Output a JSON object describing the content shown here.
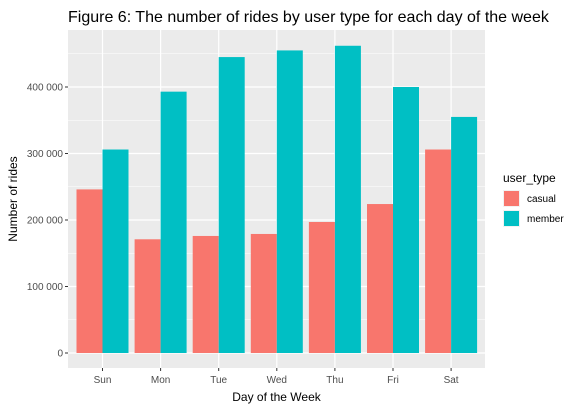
{
  "chart_data": {
    "type": "bar",
    "title": "Figure 6: The number of rides by user type for each day of the week",
    "xlabel": "Day of the Week",
    "ylabel": "Number of rides",
    "categories": [
      "Sun",
      "Mon",
      "Tue",
      "Wed",
      "Thu",
      "Fri",
      "Sat"
    ],
    "series": [
      {
        "name": "casual",
        "color": "#F8766D",
        "values": [
          246000,
          171000,
          176000,
          179000,
          197000,
          224000,
          306000
        ]
      },
      {
        "name": "member",
        "color": "#00BFC4",
        "values": [
          306000,
          393000,
          445000,
          455000,
          462000,
          400000,
          355000
        ]
      }
    ],
    "ylim": [
      0,
      480000
    ],
    "yticks": [
      0,
      100000,
      200000,
      300000,
      400000
    ],
    "ytick_labels": [
      "0",
      "100 000",
      "200 000",
      "300 000",
      "400 000"
    ],
    "grid": true,
    "legend": {
      "title": "user_type",
      "placement": "right"
    }
  }
}
